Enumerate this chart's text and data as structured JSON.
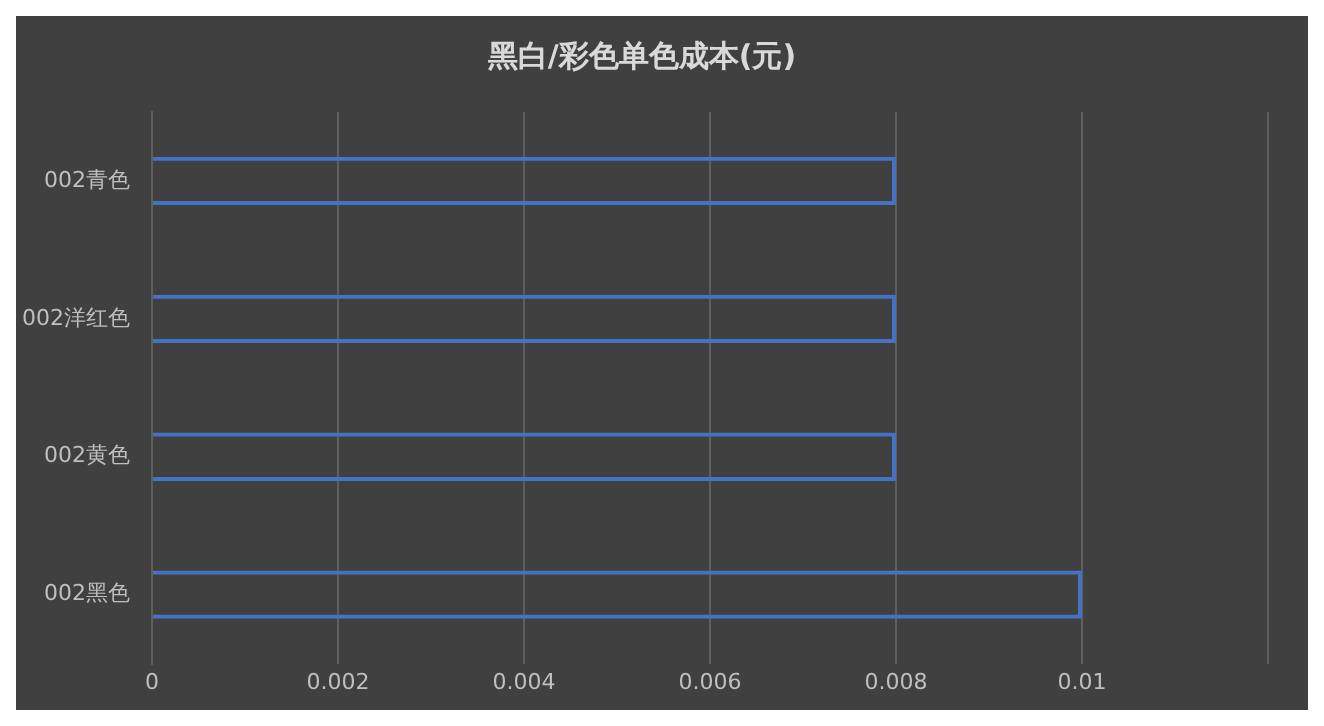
{
  "chart_data": {
    "type": "bar",
    "orientation": "horizontal",
    "title": "黑白/彩色单色成本(元)",
    "categories": [
      "002青色",
      "002洋红色",
      "002黄色",
      "002黑色"
    ],
    "values": [
      0.008,
      0.008,
      0.008,
      0.01
    ],
    "color": "#4472c4",
    "xlim": [
      0,
      0.012
    ],
    "xticks": [
      0,
      0.002,
      0.004,
      0.006,
      0.008,
      0.01,
      {
        "value": 0.012,
        "label": null
      }
    ],
    "grid": "x",
    "legend": false
  }
}
